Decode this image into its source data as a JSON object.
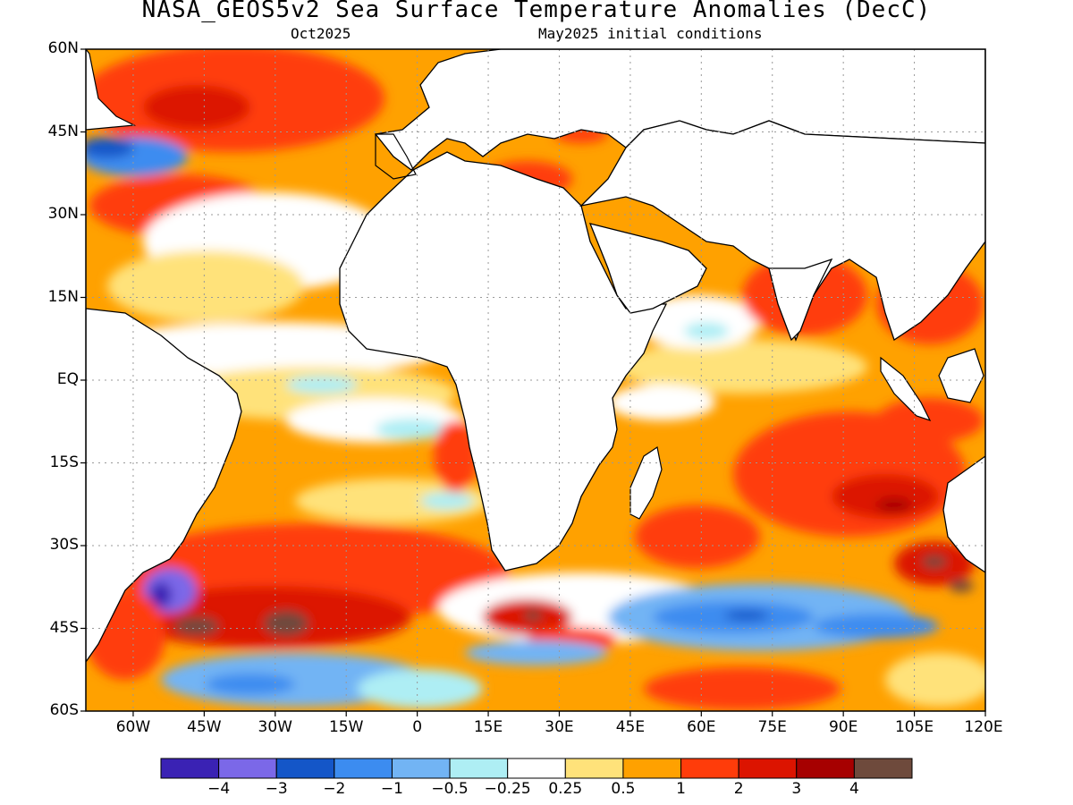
{
  "title": "NASA_GEOS5v2 Sea Surface Temperature Anomalies (DecC)",
  "subtitle_left": "Oct2025",
  "subtitle_right": "May2025 initial conditions",
  "lat_labels": [
    "60N",
    "45N",
    "30N",
    "15N",
    "EQ",
    "15S",
    "30S",
    "45S",
    "60S"
  ],
  "lon_labels": [
    "60W",
    "45W",
    "30W",
    "15W",
    "0",
    "15E",
    "30E",
    "45E",
    "60E",
    "75E",
    "90E",
    "105E",
    "120E"
  ],
  "colorbar": {
    "colors": [
      "#3a22b4",
      "#7b68e8",
      "#1456c8",
      "#3c8cf0",
      "#72b4f4",
      "#aeeef4",
      "#ffffff",
      "#ffe27a",
      "#ffa100",
      "#ff3c0a",
      "#dc1400",
      "#a60000",
      "#6e4a3c"
    ],
    "labels": [
      "-4",
      "-3",
      "-2",
      "-1",
      "-0.5",
      "-0.25",
      "0.25",
      "0.5",
      "1",
      "2",
      "3",
      "4"
    ]
  },
  "map": {
    "domain": {
      "lon_range": [
        -70,
        120
      ],
      "lat_range": [
        -60,
        60
      ]
    },
    "land_color": "#ffffff",
    "coast_color": "#000000",
    "grid": "dotted",
    "background_anomaly_color": "#ffa100"
  }
}
